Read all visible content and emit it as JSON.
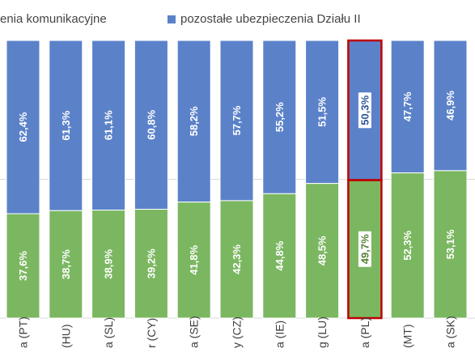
{
  "legend": {
    "green_label_visible": "enia komunikacyjne",
    "blue_label": "pozostałe ubezpieczenia Działu II"
  },
  "colors": {
    "green": "#7bb761",
    "blue": "#5b82c9",
    "highlight": "#c00000",
    "label_text": "#ffffff",
    "axis_text": "#404040",
    "grid": "#d9d9d9"
  },
  "chart_data": {
    "type": "bar",
    "stacked": true,
    "percent_stacked": true,
    "categories": [
      "a (PT)",
      "(HU)",
      "a (SL)",
      "r (CY)",
      "a (SE)",
      "y (CZ)",
      "a (IE)",
      "g (LU)",
      "a (PL)",
      "(MT)",
      "a (SK)"
    ],
    "series": [
      {
        "name": "enia komunikacyjne",
        "color": "#7bb761",
        "values": [
          37.6,
          38.7,
          38.9,
          39.2,
          41.8,
          42.3,
          44.8,
          48.5,
          49.7,
          52.3,
          53.1
        ],
        "labels": [
          "37,6%",
          "38,7%",
          "38,9%",
          "39,2%",
          "41,8%",
          "42,3%",
          "44,8%",
          "48,5%",
          "49,7%",
          "52,3%",
          "53,1%"
        ]
      },
      {
        "name": "pozostałe ubezpieczenia Działu II",
        "color": "#5b82c9",
        "values": [
          62.4,
          61.3,
          61.1,
          60.8,
          58.2,
          57.7,
          55.2,
          51.5,
          50.3,
          47.7,
          46.9
        ],
        "labels": [
          "62,4%",
          "61,3%",
          "61,1%",
          "60,8%",
          "58,2%",
          "57,7%",
          "55,2%",
          "51,5%",
          "50,3%",
          "47,7%",
          "46,9%"
        ]
      }
    ],
    "highlight_category": "a (PL)",
    "ylim": [
      0,
      100
    ],
    "grid": true,
    "legend_position": "top"
  }
}
